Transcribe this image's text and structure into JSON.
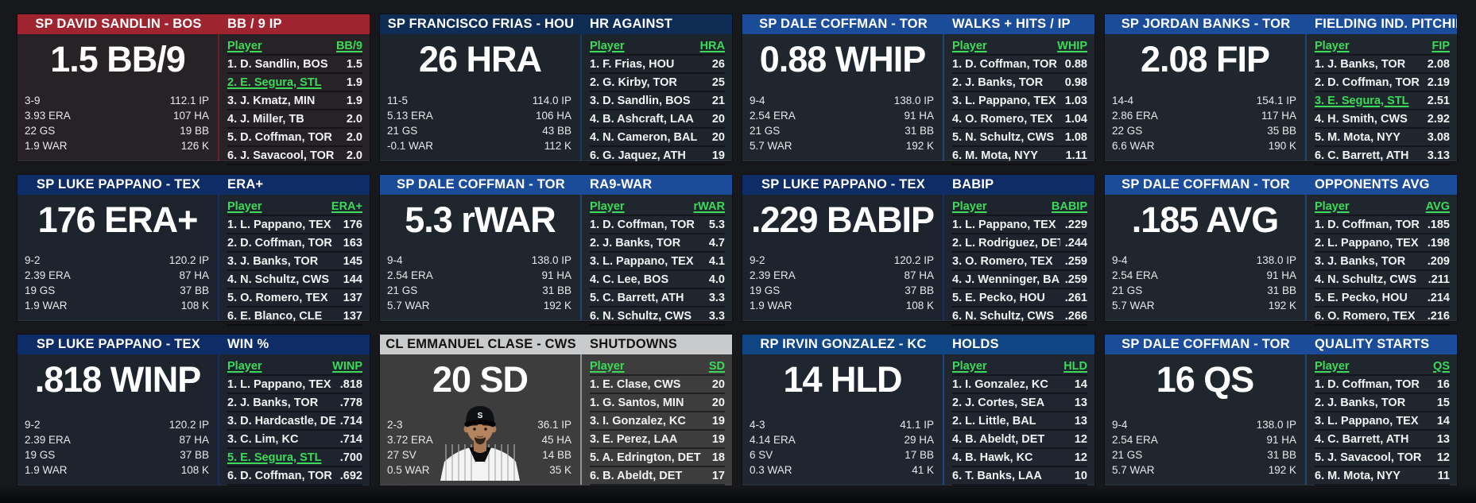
{
  "colors": {
    "green": "#3bdb58",
    "page_bg": "#16181c"
  },
  "panels": [
    {
      "player": "SP DAVID SANDLIN - BOS",
      "category": "BB / 9 IP",
      "big_stat": "1.5 BB/9",
      "column": "BB/9",
      "theme": {
        "header_bg": "#9e2430",
        "header_fg": "#ffffff",
        "body_bg": "#272226",
        "divider": "#6a2026"
      },
      "left_stats": [
        "3-9",
        "3.93 ERA",
        "22 GS",
        "1.9 WAR"
      ],
      "right_stats": [
        "112.1 IP",
        "107 HA",
        "19 BB",
        "126 K"
      ],
      "player_col_header": "Player",
      "leaders": [
        {
          "rank": "1.",
          "name": "D. Sandlin, BOS",
          "value": "1.5",
          "highlight": false
        },
        {
          "rank": "2.",
          "name": "E. Segura, STL",
          "value": "1.9",
          "highlight": true
        },
        {
          "rank": "3.",
          "name": "J. Kmatz, MIN",
          "value": "1.9",
          "highlight": false
        },
        {
          "rank": "4.",
          "name": "J. Miller, TB",
          "value": "2.0",
          "highlight": false
        },
        {
          "rank": "5.",
          "name": "D. Coffman, TOR",
          "value": "2.0",
          "highlight": false
        },
        {
          "rank": "6.",
          "name": "J. Savacool, TOR",
          "value": "2.0",
          "highlight": false
        }
      ]
    },
    {
      "player": "SP FRANCISCO FRIAS - HOU",
      "category": "HR AGAINST",
      "big_stat": "26 HRA",
      "column": "HRA",
      "theme": {
        "header_bg": "#0e2c54",
        "header_fg": "#ffffff",
        "body_bg": "#1e242c",
        "divider": "#173a63"
      },
      "left_stats": [
        "11-5",
        "5.13 ERA",
        "21 GS",
        "-0.1 WAR"
      ],
      "right_stats": [
        "114.0 IP",
        "106 HA",
        "43 BB",
        "112 K"
      ],
      "player_col_header": "Player",
      "leaders": [
        {
          "rank": "1.",
          "name": "F. Frias, HOU",
          "value": "26",
          "highlight": false
        },
        {
          "rank": "2.",
          "name": "G. Kirby, TOR",
          "value": "25",
          "highlight": false
        },
        {
          "rank": "3.",
          "name": "D. Sandlin, BOS",
          "value": "21",
          "highlight": false
        },
        {
          "rank": "4.",
          "name": "B. Ashcraft, LAA",
          "value": "20",
          "highlight": false
        },
        {
          "rank": "4.",
          "name": "N. Cameron, BAL",
          "value": "20",
          "highlight": false
        },
        {
          "rank": "6.",
          "name": "G. Jaquez, ATH",
          "value": "19",
          "highlight": false
        }
      ]
    },
    {
      "player": "SP DALE COFFMAN - TOR",
      "category": "WALKS + HITS / IP",
      "big_stat": "0.88 WHIP",
      "column": "WHIP",
      "theme": {
        "header_bg": "#1b4c99",
        "header_fg": "#ffffff",
        "body_bg": "#20262e",
        "divider": "#1d4576"
      },
      "left_stats": [
        "9-4",
        "2.54 ERA",
        "21 GS",
        "5.7 WAR"
      ],
      "right_stats": [
        "138.0 IP",
        "91 HA",
        "31 BB",
        "192 K"
      ],
      "player_col_header": "Player",
      "leaders": [
        {
          "rank": "1.",
          "name": "D. Coffman, TOR",
          "value": "0.88",
          "highlight": false
        },
        {
          "rank": "2.",
          "name": "J. Banks, TOR",
          "value": "0.98",
          "highlight": false
        },
        {
          "rank": "3.",
          "name": "L. Pappano, TEX",
          "value": "1.03",
          "highlight": false
        },
        {
          "rank": "4.",
          "name": "O. Romero, TEX",
          "value": "1.04",
          "highlight": false
        },
        {
          "rank": "5.",
          "name": "N. Schultz, CWS",
          "value": "1.08",
          "highlight": false
        },
        {
          "rank": "6.",
          "name": "M. Mota, NYY",
          "value": "1.11",
          "highlight": false
        }
      ]
    },
    {
      "player": "SP JORDAN BANKS - TOR",
      "category": "FIELDING IND. PITCHING",
      "big_stat": "2.08 FIP",
      "column": "FIP",
      "theme": {
        "header_bg": "#1b4c99",
        "header_fg": "#ffffff",
        "body_bg": "#20262e",
        "divider": "#1d4576"
      },
      "left_stats": [
        "14-4",
        "2.86 ERA",
        "22 GS",
        "6.6 WAR"
      ],
      "right_stats": [
        "154.1 IP",
        "117 HA",
        "35 BB",
        "190 K"
      ],
      "player_col_header": "Player",
      "leaders": [
        {
          "rank": "1.",
          "name": "J. Banks, TOR",
          "value": "2.08",
          "highlight": false
        },
        {
          "rank": "2.",
          "name": "D. Coffman, TOR",
          "value": "2.19",
          "highlight": false
        },
        {
          "rank": "3.",
          "name": "E. Segura, STL",
          "value": "2.51",
          "highlight": true
        },
        {
          "rank": "4.",
          "name": "H. Smith, CWS",
          "value": "2.92",
          "highlight": false
        },
        {
          "rank": "5.",
          "name": "M. Mota, NYY",
          "value": "3.08",
          "highlight": false
        },
        {
          "rank": "6.",
          "name": "C. Barrett, ATH",
          "value": "3.13",
          "highlight": false
        }
      ]
    },
    {
      "player": "SP LUKE PAPPANO - TEX",
      "category": "ERA+",
      "big_stat": "176 ERA+",
      "column": "ERA+",
      "theme": {
        "header_bg": "#0e2d66",
        "header_fg": "#ffffff",
        "body_bg": "#1e242e",
        "divider": "#152f66"
      },
      "left_stats": [
        "9-2",
        "2.39 ERA",
        "19 GS",
        "1.9 WAR"
      ],
      "right_stats": [
        "120.2 IP",
        "87 HA",
        "37 BB",
        "108 K"
      ],
      "player_col_header": "Player",
      "leaders": [
        {
          "rank": "1.",
          "name": "L. Pappano, TEX",
          "value": "176",
          "highlight": false
        },
        {
          "rank": "2.",
          "name": "D. Coffman, TOR",
          "value": "163",
          "highlight": false
        },
        {
          "rank": "3.",
          "name": "J. Banks, TOR",
          "value": "145",
          "highlight": false
        },
        {
          "rank": "4.",
          "name": "N. Schultz, CWS",
          "value": "144",
          "highlight": false
        },
        {
          "rank": "5.",
          "name": "O. Romero, TEX",
          "value": "137",
          "highlight": false
        },
        {
          "rank": "6.",
          "name": "E. Blanco, CLE",
          "value": "137",
          "highlight": false
        }
      ]
    },
    {
      "player": "SP DALE COFFMAN - TOR",
      "category": "RA9-WAR",
      "big_stat": "5.3 rWAR",
      "column": "rWAR",
      "theme": {
        "header_bg": "#1b4c99",
        "header_fg": "#ffffff",
        "body_bg": "#20262e",
        "divider": "#1d4576"
      },
      "left_stats": [
        "9-4",
        "2.54 ERA",
        "21 GS",
        "5.7 WAR"
      ],
      "right_stats": [
        "138.0 IP",
        "91 HA",
        "31 BB",
        "192 K"
      ],
      "player_col_header": "Player",
      "leaders": [
        {
          "rank": "1.",
          "name": "D. Coffman, TOR",
          "value": "5.3",
          "highlight": false
        },
        {
          "rank": "2.",
          "name": "J. Banks, TOR",
          "value": "4.7",
          "highlight": false
        },
        {
          "rank": "3.",
          "name": "L. Pappano, TEX",
          "value": "4.1",
          "highlight": false
        },
        {
          "rank": "4.",
          "name": "C. Lee, BOS",
          "value": "4.0",
          "highlight": false
        },
        {
          "rank": "5.",
          "name": "C. Barrett, ATH",
          "value": "3.3",
          "highlight": false
        },
        {
          "rank": "6.",
          "name": "N. Schultz, CWS",
          "value": "3.3",
          "highlight": false
        }
      ]
    },
    {
      "player": "SP LUKE PAPPANO - TEX",
      "category": "BABIP",
      "big_stat": ".229 BABIP",
      "column": "BABIP",
      "theme": {
        "header_bg": "#0e2d66",
        "header_fg": "#ffffff",
        "body_bg": "#1e242e",
        "divider": "#152f66"
      },
      "left_stats": [
        "9-2",
        "2.39 ERA",
        "19 GS",
        "1.9 WAR"
      ],
      "right_stats": [
        "120.2 IP",
        "87 HA",
        "37 BB",
        "108 K"
      ],
      "player_col_header": "Player",
      "leaders": [
        {
          "rank": "1.",
          "name": "L. Pappano, TEX",
          "value": ".229",
          "highlight": false
        },
        {
          "rank": "2.",
          "name": "L. Rodriguez, DET",
          "value": ".244",
          "highlight": false
        },
        {
          "rank": "3.",
          "name": "O. Romero, TEX",
          "value": ".259",
          "highlight": false
        },
        {
          "rank": "4.",
          "name": "J. Wenninger, BAL",
          "value": ".259",
          "highlight": false
        },
        {
          "rank": "5.",
          "name": "E. Pecko, HOU",
          "value": ".261",
          "highlight": false
        },
        {
          "rank": "6.",
          "name": "N. Schultz, CWS",
          "value": ".266",
          "highlight": false
        }
      ]
    },
    {
      "player": "SP DALE COFFMAN - TOR",
      "category": "OPPONENTS AVG",
      "big_stat": ".185 AVG",
      "column": "AVG",
      "theme": {
        "header_bg": "#1b4c99",
        "header_fg": "#ffffff",
        "body_bg": "#20262e",
        "divider": "#1d4576"
      },
      "left_stats": [
        "9-4",
        "2.54 ERA",
        "21 GS",
        "5.7 WAR"
      ],
      "right_stats": [
        "138.0 IP",
        "91 HA",
        "31 BB",
        "192 K"
      ],
      "player_col_header": "Player",
      "leaders": [
        {
          "rank": "1.",
          "name": "D. Coffman, TOR",
          "value": ".185",
          "highlight": false
        },
        {
          "rank": "2.",
          "name": "L. Pappano, TEX",
          "value": ".198",
          "highlight": false
        },
        {
          "rank": "3.",
          "name": "J. Banks, TOR",
          "value": ".209",
          "highlight": false
        },
        {
          "rank": "4.",
          "name": "N. Schultz, CWS",
          "value": ".211",
          "highlight": false
        },
        {
          "rank": "5.",
          "name": "E. Pecko, HOU",
          "value": ".214",
          "highlight": false
        },
        {
          "rank": "6.",
          "name": "O. Romero, TEX",
          "value": ".216",
          "highlight": false
        }
      ]
    },
    {
      "player": "SP LUKE PAPPANO - TEX",
      "category": "WIN %",
      "big_stat": ".818 WINP",
      "column": "WINP",
      "theme": {
        "header_bg": "#0e2d66",
        "header_fg": "#ffffff",
        "body_bg": "#1e242e",
        "divider": "#152f66"
      },
      "left_stats": [
        "9-2",
        "2.39 ERA",
        "19 GS",
        "1.9 WAR"
      ],
      "right_stats": [
        "120.2 IP",
        "87 HA",
        "37 BB",
        "108 K"
      ],
      "player_col_header": "Player",
      "leaders": [
        {
          "rank": "1.",
          "name": "L. Pappano, TEX",
          "value": ".818",
          "highlight": false
        },
        {
          "rank": "2.",
          "name": "J. Banks, TOR",
          "value": ".778",
          "highlight": false
        },
        {
          "rank": "3.",
          "name": "D. Hardcastle, DET",
          "value": ".714",
          "highlight": false
        },
        {
          "rank": "3.",
          "name": "C. Lim, KC",
          "value": ".714",
          "highlight": false
        },
        {
          "rank": "5.",
          "name": "E. Segura, STL",
          "value": ".700",
          "highlight": true
        },
        {
          "rank": "6.",
          "name": "D. Coffman, TOR",
          "value": ".692",
          "highlight": false
        }
      ]
    },
    {
      "player": "CL EMMANUEL CLASE - CWS",
      "category": "SHUTDOWNS",
      "big_stat": "20 SD",
      "column": "SD",
      "photo": "white-sox-player-portrait",
      "theme": {
        "header_bg": "#c9cacb",
        "header_fg": "#121212",
        "body_bg": "#3d3d3e",
        "divider": "#8f9496"
      },
      "left_stats": [
        "2-3",
        "3.72 ERA",
        "27 SV",
        "0.5 WAR"
      ],
      "right_stats": [
        "36.1 IP",
        "45 HA",
        "14 BB",
        "35 K"
      ],
      "player_col_header": "Player",
      "leaders": [
        {
          "rank": "1.",
          "name": "E. Clase, CWS",
          "value": "20",
          "highlight": false
        },
        {
          "rank": "1.",
          "name": "G. Santos, MIN",
          "value": "20",
          "highlight": false
        },
        {
          "rank": "3.",
          "name": "I. Gonzalez, KC",
          "value": "19",
          "highlight": false
        },
        {
          "rank": "3.",
          "name": "E. Perez, LAA",
          "value": "19",
          "highlight": false
        },
        {
          "rank": "5.",
          "name": "A. Edrington, DET",
          "value": "18",
          "highlight": false
        },
        {
          "rank": "6.",
          "name": "B. Abeldt, DET",
          "value": "17",
          "highlight": false
        }
      ]
    },
    {
      "player": "RP IRVIN GONZALEZ - KC",
      "category": "HOLDS",
      "big_stat": "14 HLD",
      "column": "HLD",
      "theme": {
        "header_bg": "#0f4583",
        "header_fg": "#ffffff",
        "body_bg": "#1f2630",
        "divider": "#16497f"
      },
      "left_stats": [
        "4-3",
        "4.14 ERA",
        "6 SV",
        "0.3 WAR"
      ],
      "right_stats": [
        "41.1 IP",
        "29 HA",
        "17 BB",
        "41 K"
      ],
      "player_col_header": "Player",
      "leaders": [
        {
          "rank": "1.",
          "name": "I. Gonzalez, KC",
          "value": "14",
          "highlight": false
        },
        {
          "rank": "2.",
          "name": "J. Cortes, SEA",
          "value": "13",
          "highlight": false
        },
        {
          "rank": "2.",
          "name": "L. Little, BAL",
          "value": "13",
          "highlight": false
        },
        {
          "rank": "4.",
          "name": "B. Abeldt, DET",
          "value": "12",
          "highlight": false
        },
        {
          "rank": "4.",
          "name": "B. Hawk, KC",
          "value": "12",
          "highlight": false
        },
        {
          "rank": "6.",
          "name": "T. Banks, LAA",
          "value": "10",
          "highlight": false
        }
      ]
    },
    {
      "player": "SP DALE COFFMAN - TOR",
      "category": "QUALITY STARTS",
      "big_stat": "16 QS",
      "column": "QS",
      "theme": {
        "header_bg": "#1b4c99",
        "header_fg": "#ffffff",
        "body_bg": "#20262e",
        "divider": "#1d4576"
      },
      "left_stats": [
        "9-4",
        "2.54 ERA",
        "21 GS",
        "5.7 WAR"
      ],
      "right_stats": [
        "138.0 IP",
        "91 HA",
        "31 BB",
        "192 K"
      ],
      "player_col_header": "Player",
      "leaders": [
        {
          "rank": "1.",
          "name": "D. Coffman, TOR",
          "value": "16",
          "highlight": false
        },
        {
          "rank": "2.",
          "name": "J. Banks, TOR",
          "value": "15",
          "highlight": false
        },
        {
          "rank": "3.",
          "name": "L. Pappano, TEX",
          "value": "14",
          "highlight": false
        },
        {
          "rank": "4.",
          "name": "C. Barrett, ATH",
          "value": "13",
          "highlight": false
        },
        {
          "rank": "5.",
          "name": "J. Savacool, TOR",
          "value": "12",
          "highlight": false
        },
        {
          "rank": "6.",
          "name": "M. Mota, NYY",
          "value": "11",
          "highlight": false
        }
      ]
    }
  ]
}
